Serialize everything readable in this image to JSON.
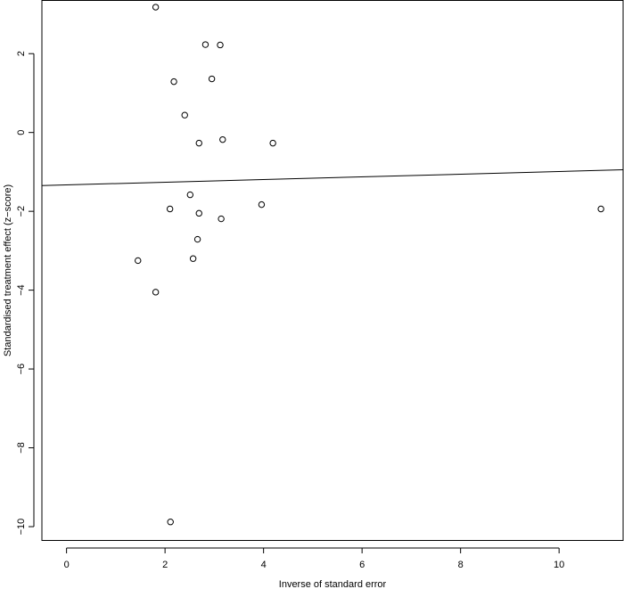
{
  "chart_data": {
    "type": "scatter",
    "title": "",
    "xlabel": "Inverse of standard error",
    "ylabel": "Standardised treatment effect (z−score)",
    "xlim": [
      -0.5,
      11.3
    ],
    "ylim": [
      -10.35,
      3.35
    ],
    "x_ticks": [
      0,
      2,
      4,
      6,
      8,
      10
    ],
    "y_ticks": [
      -10,
      -8,
      -6,
      -4,
      -2,
      0,
      2
    ],
    "grid": false,
    "legend": "none",
    "point_style": "open-circle",
    "points": [
      {
        "x": 1.81,
        "y": 3.18
      },
      {
        "x": 2.82,
        "y": 2.23
      },
      {
        "x": 3.12,
        "y": 2.22
      },
      {
        "x": 2.18,
        "y": 1.29
      },
      {
        "x": 2.95,
        "y": 1.36
      },
      {
        "x": 2.4,
        "y": 0.44
      },
      {
        "x": 2.69,
        "y": -0.27
      },
      {
        "x": 3.17,
        "y": -0.18
      },
      {
        "x": 4.19,
        "y": -0.27
      },
      {
        "x": 2.51,
        "y": -1.58
      },
      {
        "x": 2.1,
        "y": -1.94
      },
      {
        "x": 2.69,
        "y": -2.05
      },
      {
        "x": 3.14,
        "y": -2.19
      },
      {
        "x": 3.96,
        "y": -1.83
      },
      {
        "x": 2.66,
        "y": -2.71
      },
      {
        "x": 2.57,
        "y": -3.2
      },
      {
        "x": 1.45,
        "y": -3.25
      },
      {
        "x": 1.81,
        "y": -4.05
      },
      {
        "x": 2.11,
        "y": -9.88
      },
      {
        "x": 10.85,
        "y": -1.94
      }
    ],
    "fit_line": {
      "intercept": -1.33,
      "slope": 0.034
    }
  }
}
